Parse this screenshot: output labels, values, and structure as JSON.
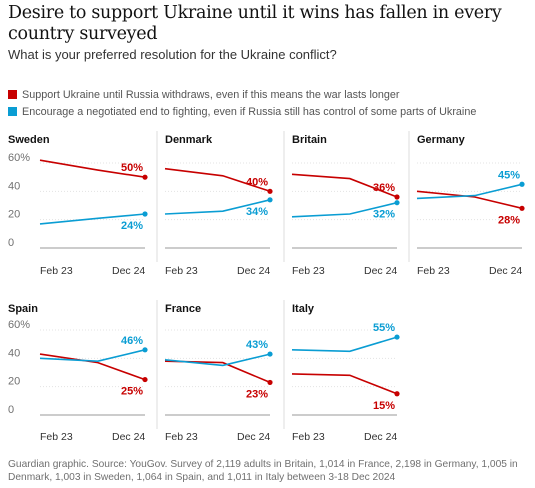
{
  "title": "Desire to support Ukraine until it wins has fallen in every country surveyed",
  "subtitle": "What is your preferred resolution for the Ukraine conflict?",
  "legend": [
    {
      "label": "Support Ukraine until Russia withdraws, even if this means the war lasts longer",
      "color": "#c70000"
    },
    {
      "label": "Encourage a negotiated end to fighting, even if Russia still has control of some parts of Ukraine",
      "color": "#0a9dd3"
    }
  ],
  "footer": "Guardian graphic. Source: YouGov. Survey of 2,119 adults in Britain, 1,014 in France, 2,198 in Germany, 1,005 in Denmark, 1,003 in Sweden, 1,064 in Spain, and 1,011 in Italy between 3-18 Dec 2024",
  "chart_data": {
    "type": "line",
    "x": [
      "Feb 23",
      "Dec 24"
    ],
    "ylim": [
      0,
      60
    ],
    "yticks": [
      "0",
      "20",
      "40",
      "60%"
    ],
    "grid": true,
    "legend_position": "top",
    "series_names": [
      "Support Ukraine until Russia withdraws, even if this means the war lasts longer",
      "Encourage a negotiated end to fighting, even if Russia still has control of some parts of Ukraine"
    ],
    "panels": [
      {
        "country": "Sweden",
        "support": [
          62,
          55,
          50
        ],
        "negotiate": [
          17,
          21,
          24
        ],
        "support_label": "50%",
        "negotiate_label": "24%"
      },
      {
        "country": "Denmark",
        "support": [
          56,
          51,
          40
        ],
        "negotiate": [
          24,
          26,
          34
        ],
        "support_label": "40%",
        "negotiate_label": "34%"
      },
      {
        "country": "Britain",
        "support": [
          52,
          49,
          36
        ],
        "negotiate": [
          22,
          24,
          32
        ],
        "support_label": "36%",
        "negotiate_label": "32%"
      },
      {
        "country": "Germany",
        "support": [
          40,
          36,
          28
        ],
        "negotiate": [
          35,
          37,
          45
        ],
        "support_label": "28%",
        "negotiate_label": "45%"
      },
      {
        "country": "Spain",
        "support": [
          43,
          37,
          25
        ],
        "negotiate": [
          40,
          38,
          46
        ],
        "support_label": "25%",
        "negotiate_label": "46%"
      },
      {
        "country": "France",
        "support": [
          38,
          37,
          23
        ],
        "negotiate": [
          39,
          35,
          43
        ],
        "support_label": "23%",
        "negotiate_label": "43%"
      },
      {
        "country": "Italy",
        "support": [
          29,
          28,
          15
        ],
        "negotiate": [
          46,
          45,
          55
        ],
        "support_label": "15%",
        "negotiate_label": "55%"
      }
    ]
  }
}
